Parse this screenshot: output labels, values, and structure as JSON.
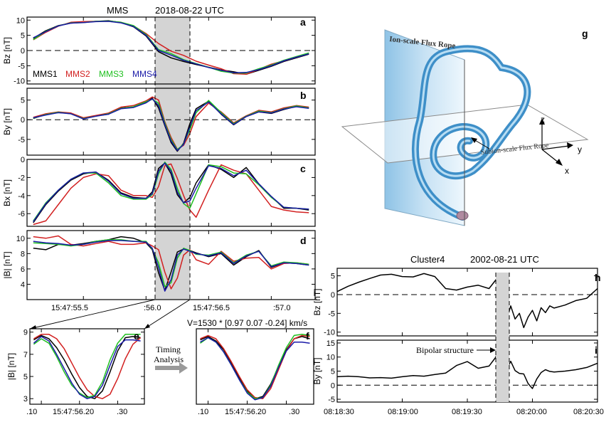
{
  "colors": {
    "mms1": "#000000",
    "mms2": "#d22020",
    "mms3": "#20c020",
    "mms4": "#1a1aa8",
    "shade": "#d4d4d4",
    "frame": "#000000"
  },
  "left_header": {
    "mission": "MMS",
    "date": "2018-08-22 UTC"
  },
  "right_header": {
    "mission": "Cluster4",
    "date": "2002-08-21 UTC"
  },
  "legend": [
    "MMS1",
    "MMS2",
    "MMS3",
    "MMS4"
  ],
  "panel_letters": {
    "a": "a",
    "b": "b",
    "c": "c",
    "d": "d",
    "e": "e",
    "f": "f",
    "g": "g",
    "h": "h",
    "i": "i"
  },
  "left_xticks": [
    "15:47:55.5",
    ":56.0",
    "15:47:56.5",
    ":57.0"
  ],
  "zoom_xticks": [
    ".10",
    "15:47:56.20",
    ".30"
  ],
  "right_xticks": [
    "08:18:30",
    "08:19:00",
    "08:19:30",
    "08:20:00",
    "08:20:30"
  ],
  "timing": {
    "label_line1": "Timing",
    "label_line2": "Analysis",
    "velocity": "V=1530 * [0.97 0.07 -0.24] km/s"
  },
  "diagram": {
    "ion_rope": "Ion-scale Flux Rope",
    "subion_rope": "Subion-scale Flux Rope",
    "axis_x": "x",
    "axis_y": "y",
    "axis_z": "z"
  },
  "annotation": {
    "bipolar": "Bipolar structure"
  },
  "chart_data": [
    {
      "type": "line",
      "panel": "a",
      "ylabel": "Bz [nT]",
      "ylim": [
        -11,
        11
      ],
      "yticks": [
        10,
        5,
        0,
        -5,
        -10
      ],
      "x": [
        55.1,
        55.2,
        55.3,
        55.4,
        55.5,
        55.6,
        55.7,
        55.8,
        55.9,
        56.0,
        56.1,
        56.2,
        56.3,
        56.4,
        56.5,
        56.6,
        56.7,
        56.8,
        56.9,
        57.0,
        57.1,
        57.2,
        57.3
      ],
      "series": [
        {
          "name": "MMS1",
          "values": [
            4,
            6.5,
            8.2,
            9.0,
            9.3,
            9.6,
            9.8,
            9.2,
            7.8,
            4.8,
            -0.4,
            -2.4,
            -3.6,
            -4.6,
            -5.5,
            -6.4,
            -7.0,
            -7.8,
            -6.5,
            -5.2,
            -3.6,
            -2.4,
            -1.2
          ]
        },
        {
          "name": "MMS2",
          "values": [
            3.5,
            6.0,
            8.0,
            9.3,
            9.5,
            9.6,
            9.6,
            9.3,
            8.1,
            5.6,
            2.3,
            -0.2,
            -1.6,
            -3.5,
            -4.8,
            -6.0,
            -7.6,
            -7.8,
            -6.2,
            -4.5,
            -3.4,
            -2.2,
            -1.0
          ]
        },
        {
          "name": "MMS3",
          "values": [
            3.6,
            6.3,
            8.1,
            9.1,
            9.2,
            9.6,
            9.7,
            9.3,
            8.2,
            5.3,
            0.3,
            -1.0,
            -3.0,
            -4.3,
            -5.5,
            -6.8,
            -7.4,
            -7.4,
            -6.0,
            -4.8,
            -3.2,
            -2.0,
            -0.8
          ]
        },
        {
          "name": "MMS4",
          "values": [
            4.2,
            6.2,
            8.1,
            9.0,
            9.2,
            9.5,
            9.6,
            9.1,
            7.9,
            5.0,
            0.0,
            -1.5,
            -3.2,
            -4.4,
            -5.6,
            -6.5,
            -7.3,
            -7.2,
            -6.3,
            -5.0,
            -3.4,
            -2.2,
            -1.1
          ]
        }
      ]
    },
    {
      "type": "line",
      "panel": "b",
      "ylabel": "By [nT]",
      "ylim": [
        -9,
        8
      ],
      "yticks": [
        5,
        0,
        -5
      ],
      "x": [
        55.1,
        55.2,
        55.3,
        55.4,
        55.5,
        55.6,
        55.7,
        55.8,
        55.9,
        56.0,
        56.05,
        56.1,
        56.15,
        56.2,
        56.25,
        56.3,
        56.35,
        56.4,
        56.5,
        56.6,
        56.7,
        56.8,
        56.9,
        57.0,
        57.1,
        57.2,
        57.3
      ],
      "series": [
        {
          "name": "MMS1",
          "values": [
            0.3,
            1.4,
            1.8,
            1.6,
            0.2,
            1.0,
            1.4,
            3.0,
            3.2,
            4.4,
            5.5,
            3.0,
            -1.5,
            -5.8,
            -8.0,
            -6.0,
            -1.0,
            2.8,
            4.7,
            1.4,
            -1.3,
            0.8,
            2.0,
            1.6,
            2.6,
            3.4,
            3.0
          ]
        },
        {
          "name": "MMS2",
          "values": [
            0.6,
            1.5,
            2.0,
            1.7,
            0.5,
            1.1,
            1.7,
            3.2,
            3.6,
            4.8,
            5.8,
            5.0,
            -0.5,
            -4.5,
            -7.5,
            -6.5,
            -3.5,
            0.8,
            4.2,
            2.0,
            -0.8,
            1.0,
            2.4,
            2.0,
            3.0,
            3.6,
            3.2
          ]
        },
        {
          "name": "MMS3",
          "values": [
            0.4,
            1.3,
            1.9,
            1.5,
            0.3,
            0.9,
            1.5,
            2.9,
            3.3,
            4.6,
            5.2,
            4.2,
            -0.8,
            -5.0,
            -7.6,
            -6.2,
            -2.5,
            1.8,
            4.9,
            1.8,
            -1.0,
            0.9,
            2.2,
            1.8,
            2.8,
            3.5,
            3.0
          ]
        },
        {
          "name": "MMS4",
          "values": [
            0.5,
            1.2,
            1.8,
            1.5,
            0.2,
            0.9,
            1.4,
            2.8,
            3.1,
            4.3,
            5.3,
            3.6,
            -1.2,
            -5.4,
            -7.8,
            -6.3,
            -1.8,
            2.3,
            4.5,
            1.5,
            -1.2,
            0.8,
            2.0,
            1.7,
            2.7,
            3.3,
            2.9
          ]
        }
      ]
    },
    {
      "type": "line",
      "panel": "c",
      "ylabel": "Bx [nT]",
      "ylim": [
        -7.4,
        0
      ],
      "yticks": [
        0,
        -2,
        -4,
        -6
      ],
      "x": [
        55.1,
        55.2,
        55.3,
        55.4,
        55.5,
        55.6,
        55.7,
        55.8,
        55.9,
        56.0,
        56.05,
        56.1,
        56.15,
        56.2,
        56.25,
        56.3,
        56.35,
        56.4,
        56.5,
        56.6,
        56.7,
        56.8,
        56.9,
        57.0,
        57.1,
        57.2,
        57.3
      ],
      "series": [
        {
          "name": "MMS1",
          "values": [
            -7.0,
            -5.0,
            -3.5,
            -2.3,
            -1.6,
            -1.4,
            -2.3,
            -3.7,
            -4.2,
            -4.3,
            -3.6,
            -1.0,
            -0.4,
            -1.6,
            -3.9,
            -4.8,
            -4.2,
            -2.6,
            -0.6,
            -1.1,
            -2.0,
            -0.9,
            -2.7,
            -4.1,
            -5.4,
            -5.4,
            -5.6
          ]
        },
        {
          "name": "MMS2",
          "values": [
            -7.2,
            -6.8,
            -5.0,
            -3.2,
            -2.0,
            -1.6,
            -1.8,
            -3.4,
            -4.0,
            -4.0,
            -4.2,
            -3.0,
            -0.7,
            -0.5,
            -2.1,
            -4.0,
            -5.6,
            -6.4,
            -3.4,
            -0.6,
            -1.2,
            -1.6,
            -3.4,
            -5.2,
            -5.6,
            -5.8,
            -5.9
          ]
        },
        {
          "name": "MMS3",
          "values": [
            -6.8,
            -4.8,
            -3.4,
            -2.2,
            -1.5,
            -1.5,
            -2.6,
            -4.0,
            -4.4,
            -4.4,
            -3.9,
            -1.6,
            -0.3,
            -1.1,
            -3.2,
            -4.9,
            -5.4,
            -3.8,
            -0.6,
            -0.8,
            -1.5,
            -1.6,
            -2.8,
            -4.2,
            -5.3,
            -5.4,
            -5.5
          ]
        },
        {
          "name": "MMS4",
          "values": [
            -6.9,
            -4.9,
            -3.4,
            -2.2,
            -1.5,
            -1.4,
            -2.4,
            -3.8,
            -4.3,
            -4.3,
            -3.8,
            -1.3,
            -0.4,
            -1.3,
            -3.6,
            -4.8,
            -4.6,
            -3.2,
            -0.7,
            -1.0,
            -1.8,
            -1.2,
            -2.7,
            -4.1,
            -5.3,
            -5.4,
            -5.5
          ]
        }
      ]
    },
    {
      "type": "line",
      "panel": "d",
      "ylabel": "|B| [nT]",
      "ylim": [
        2,
        11
      ],
      "yticks": [
        10,
        8,
        6,
        4
      ],
      "x": [
        55.1,
        55.2,
        55.3,
        55.4,
        55.5,
        55.6,
        55.7,
        55.8,
        55.9,
        56.0,
        56.05,
        56.1,
        56.15,
        56.2,
        56.25,
        56.3,
        56.35,
        56.4,
        56.5,
        56.6,
        56.7,
        56.8,
        56.9,
        57.0,
        57.1,
        57.2,
        57.3
      ],
      "series": [
        {
          "name": "MMS1",
          "values": [
            8.7,
            8.5,
            9.2,
            9.1,
            9.3,
            9.6,
            9.8,
            10.2,
            10.0,
            9.4,
            8.5,
            5.5,
            3.2,
            5.6,
            8.2,
            8.6,
            8.4,
            8.1,
            7.6,
            8.0,
            6.5,
            7.6,
            8.4,
            6.2,
            6.8,
            6.7,
            6.5
          ]
        },
        {
          "name": "MMS2",
          "values": [
            10.2,
            10.0,
            10.3,
            9.2,
            9.0,
            9.3,
            9.6,
            9.2,
            9.2,
            9.4,
            9.0,
            8.5,
            5.6,
            3.4,
            4.8,
            7.8,
            8.5,
            7.2,
            6.6,
            8.3,
            7.0,
            7.4,
            7.5,
            6.0,
            6.7,
            6.8,
            6.6
          ]
        },
        {
          "name": "MMS3",
          "values": [
            9.4,
            9.3,
            9.2,
            9.0,
            9.2,
            9.6,
            9.8,
            9.8,
            9.6,
            9.6,
            8.6,
            6.8,
            3.7,
            4.2,
            7.4,
            8.7,
            8.4,
            7.9,
            7.8,
            8.2,
            6.8,
            7.8,
            8.3,
            6.4,
            6.9,
            6.8,
            6.6
          ]
        },
        {
          "name": "MMS4",
          "values": [
            9.6,
            9.4,
            9.3,
            9.1,
            9.2,
            9.5,
            9.7,
            9.7,
            9.6,
            9.5,
            8.7,
            6.2,
            3.1,
            4.6,
            7.8,
            8.6,
            8.3,
            8.0,
            7.7,
            8.1,
            6.7,
            7.7,
            8.3,
            6.3,
            6.8,
            6.7,
            6.5
          ]
        }
      ]
    },
    {
      "type": "line",
      "panel": "e",
      "ylabel": "|B| [nT]",
      "ylim": [
        2.5,
        9.3
      ],
      "yticks": [
        9,
        7,
        5,
        3
      ],
      "x": [
        56.08,
        56.1,
        56.12,
        56.14,
        56.16,
        56.18,
        56.2,
        56.22,
        56.24,
        56.26,
        56.28,
        56.3,
        56.32,
        56.34,
        56.36
      ],
      "series": [
        {
          "name": "MMS1",
          "values": [
            8.3,
            8.7,
            8.4,
            7.6,
            6.5,
            5.2,
            4.0,
            3.2,
            3.0,
            3.7,
            5.4,
            7.3,
            8.5,
            8.6,
            8.5
          ]
        },
        {
          "name": "MMS2",
          "values": [
            8.4,
            8.8,
            8.8,
            8.4,
            7.5,
            6.2,
            4.9,
            3.8,
            3.2,
            3.0,
            3.4,
            4.8,
            6.6,
            7.9,
            8.5
          ]
        },
        {
          "name": "MMS3",
          "values": [
            7.9,
            8.4,
            8.0,
            6.8,
            5.4,
            4.2,
            3.5,
            3.1,
            3.3,
            4.5,
            6.5,
            8.0,
            8.8,
            8.8,
            8.8
          ]
        },
        {
          "name": "MMS4",
          "values": [
            8.0,
            8.6,
            8.2,
            7.0,
            5.7,
            4.4,
            3.4,
            3.0,
            3.2,
            4.2,
            6.0,
            7.7,
            8.3,
            8.3,
            8.2
          ]
        }
      ]
    },
    {
      "type": "line",
      "panel": "f",
      "ylim": [
        2.5,
        9.3
      ],
      "x": [
        56.08,
        56.1,
        56.12,
        56.14,
        56.16,
        56.18,
        56.2,
        56.22,
        56.24,
        56.26,
        56.28,
        56.3,
        56.32,
        56.34,
        56.36
      ],
      "series": [
        {
          "name": "MMS1",
          "values": [
            8.3,
            8.6,
            8.2,
            7.4,
            6.2,
            4.9,
            3.7,
            3.0,
            3.2,
            4.3,
            5.9,
            7.4,
            8.4,
            8.6,
            8.4
          ]
        },
        {
          "name": "MMS2",
          "values": [
            8.4,
            8.7,
            8.4,
            7.5,
            6.3,
            5.0,
            3.8,
            3.1,
            3.0,
            3.9,
            5.6,
            7.3,
            8.4,
            8.7,
            8.6
          ]
        },
        {
          "name": "MMS3",
          "values": [
            8.0,
            8.5,
            8.1,
            7.2,
            6.0,
            4.7,
            3.6,
            3.0,
            3.1,
            4.2,
            6.0,
            7.6,
            8.7,
            8.8,
            8.7
          ]
        },
        {
          "name": "MMS4",
          "values": [
            8.1,
            8.5,
            8.1,
            7.2,
            6.0,
            4.7,
            3.5,
            2.9,
            3.1,
            4.1,
            5.8,
            7.3,
            8.1,
            8.1,
            8.0
          ]
        }
      ]
    },
    {
      "type": "line",
      "panel": "h",
      "ylabel": "Bz [nT]",
      "ylim": [
        -11,
        7
      ],
      "yticks": [
        5,
        0,
        -5,
        -10
      ],
      "x": [
        0,
        5,
        10,
        15,
        20,
        25,
        30,
        35,
        40,
        45,
        50,
        55,
        60,
        65,
        70,
        73,
        75,
        76,
        77,
        78,
        79,
        80,
        82,
        84,
        86,
        88,
        90,
        92,
        94,
        96,
        98,
        100,
        105,
        110,
        115,
        120
      ],
      "series": [
        {
          "name": "",
          "values": [
            0.8,
            2.2,
            3.3,
            4.3,
            5.2,
            5.4,
            4.8,
            4.7,
            5.6,
            4.8,
            1.6,
            1.2,
            2.0,
            2.5,
            1.6,
            3.8,
            5.6,
            0.5,
            -3.5,
            -1.0,
            -5.0,
            -3.0,
            -6.5,
            -5.0,
            -8.8,
            -6.0,
            -4.2,
            -7.0,
            -3.5,
            -4.8,
            -3.0,
            -3.6,
            -2.8,
            -1.6,
            -1.0,
            1.6
          ]
        }
      ]
    },
    {
      "type": "line",
      "panel": "i",
      "ylabel": "By [nT]",
      "ylim": [
        -6,
        16
      ],
      "yticks": [
        15,
        10,
        5,
        0,
        -5
      ],
      "x": [
        0,
        5,
        10,
        15,
        20,
        25,
        30,
        35,
        40,
        45,
        50,
        55,
        60,
        65,
        70,
        73,
        75,
        76,
        77,
        78,
        79,
        80,
        82,
        84,
        86,
        88,
        90,
        92,
        94,
        96,
        98,
        100,
        105,
        110,
        115,
        120
      ],
      "series": [
        {
          "name": "",
          "values": [
            3.0,
            3.2,
            3.0,
            2.6,
            2.7,
            2.5,
            3.0,
            3.4,
            3.2,
            3.8,
            4.3,
            7.0,
            8.4,
            6.0,
            6.8,
            9.8,
            14.0,
            5.0,
            -4.0,
            0.5,
            7.0,
            8.5,
            5.2,
            4.2,
            4.0,
            0.6,
            -1.2,
            2.2,
            4.5,
            5.5,
            4.9,
            4.7,
            5.0,
            5.5,
            6.3,
            7.8
          ]
        }
      ]
    }
  ]
}
